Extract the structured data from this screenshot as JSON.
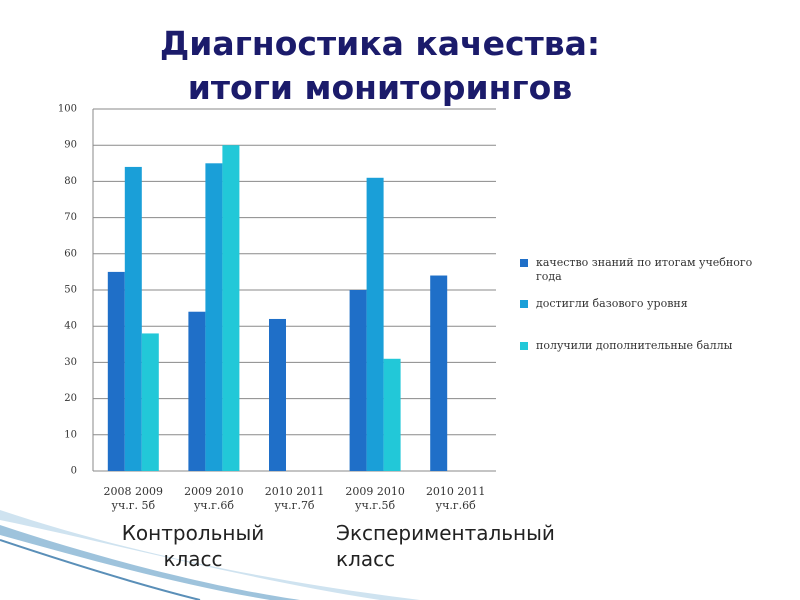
{
  "chart_data": {
    "type": "bar",
    "title": "Диагностика качества:\nитоги мониторингов",
    "categories": [
      "2008 2009\nуч.г. 5б",
      "2009 2010\nуч.г.6б",
      "2010 2011\nуч.г.7б",
      "2009 2010\nуч.г.5б",
      "2010 2011\nуч.г.6б"
    ],
    "series": [
      {
        "name": "качество знаний по итогам учебного года",
        "color": "#1f6fc8",
        "values": [
          55,
          44,
          42,
          50,
          54
        ]
      },
      {
        "name": "достигли базового уровня",
        "color": "#1a9fd8",
        "values": [
          84,
          85,
          null,
          81,
          null
        ]
      },
      {
        "name": "получили дополнительные баллы",
        "color": "#22c8d8",
        "values": [
          38,
          90,
          null,
          31,
          null
        ]
      }
    ],
    "ylim": [
      0,
      100
    ],
    "yticks": [
      0,
      10,
      20,
      30,
      40,
      50,
      60,
      70,
      80,
      90,
      100
    ],
    "grid": true,
    "legend": "right",
    "captions": [
      "Контрольный класс",
      "Экспериментальный класс"
    ]
  }
}
